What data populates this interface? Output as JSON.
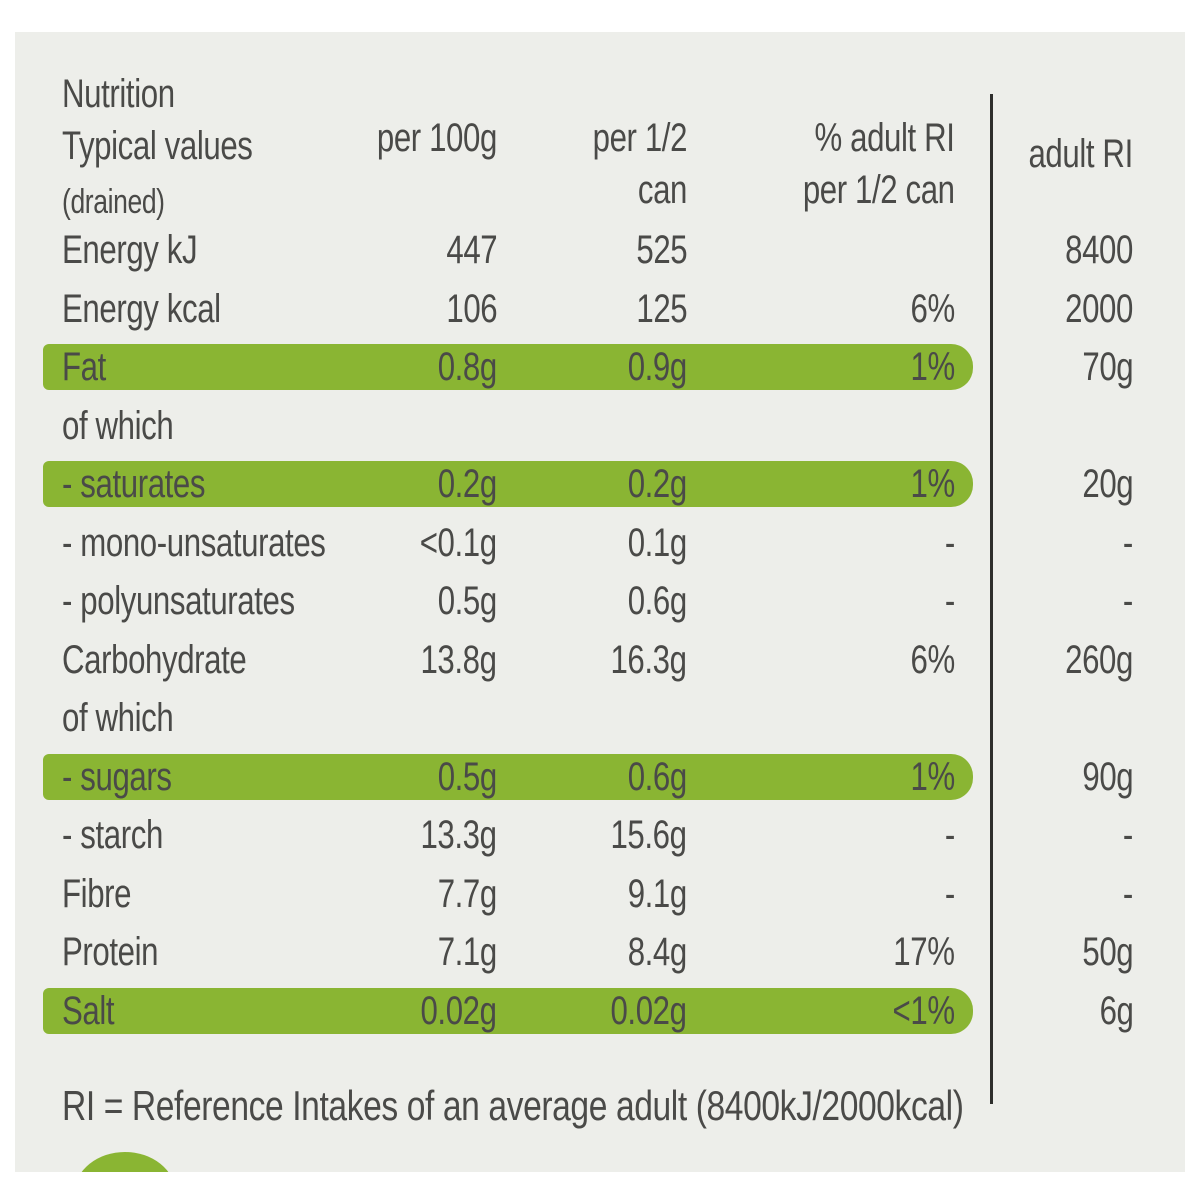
{
  "header": {
    "line1": "Nutrition",
    "line2": "Typical values",
    "line3": "(drained)",
    "per100": "per 100g",
    "perhalf_1": "per 1/2",
    "perhalf_2": "can",
    "ri_pct_1": "% adult RI",
    "ri_pct_2": "per 1/2 can",
    "adult_ri": "adult RI"
  },
  "rows": [
    {
      "label": "Energy kJ",
      "per100": "447",
      "perhalf": "525",
      "ri_pct": "",
      "adult_ri": "8400",
      "highlight": false
    },
    {
      "label": "Energy kcal",
      "per100": "106",
      "perhalf": "125",
      "ri_pct": "6%",
      "adult_ri": "2000",
      "highlight": false
    },
    {
      "label": "Fat",
      "per100": "0.8g",
      "perhalf": "0.9g",
      "ri_pct": "1%",
      "adult_ri": "70g",
      "highlight": true
    },
    {
      "label": "of which",
      "per100": "",
      "perhalf": "",
      "ri_pct": "",
      "adult_ri": "",
      "highlight": false
    },
    {
      "label": "- saturates",
      "per100": "0.2g",
      "perhalf": "0.2g",
      "ri_pct": "1%",
      "adult_ri": "20g",
      "highlight": true
    },
    {
      "label": "- mono-unsaturates",
      "per100": "<0.1g",
      "perhalf": "0.1g",
      "ri_pct": "-",
      "adult_ri": "-",
      "highlight": false
    },
    {
      "label": "- polyunsaturates",
      "per100": "0.5g",
      "perhalf": "0.6g",
      "ri_pct": "-",
      "adult_ri": "-",
      "highlight": false
    },
    {
      "label": "Carbohydrate",
      "per100": "13.8g",
      "perhalf": "16.3g",
      "ri_pct": "6%",
      "adult_ri": "260g",
      "highlight": false
    },
    {
      "label": "of which",
      "per100": "",
      "perhalf": "",
      "ri_pct": "",
      "adult_ri": "",
      "highlight": false
    },
    {
      "label": "- sugars",
      "per100": "0.5g",
      "perhalf": "0.6g",
      "ri_pct": "1%",
      "adult_ri": "90g",
      "highlight": true
    },
    {
      "label": "- starch",
      "per100": "13.3g",
      "perhalf": "15.6g",
      "ri_pct": "-",
      "adult_ri": "-",
      "highlight": false
    },
    {
      "label": "Fibre",
      "per100": "7.7g",
      "perhalf": "9.1g",
      "ri_pct": "-",
      "adult_ri": "-",
      "highlight": false
    },
    {
      "label": "Protein",
      "per100": "7.1g",
      "perhalf": "8.4g",
      "ri_pct": "17%",
      "adult_ri": "50g",
      "highlight": false
    },
    {
      "label": "Salt",
      "per100": "0.02g",
      "perhalf": "0.02g",
      "ri_pct": "<1%",
      "adult_ri": "6g",
      "highlight": true
    }
  ],
  "footer": "RI = Reference Intakes of an average adult (8400kJ/2000kcal)",
  "colors": {
    "highlight": "#8ab533",
    "background": "#edeeea",
    "text": "#4a4a48"
  }
}
